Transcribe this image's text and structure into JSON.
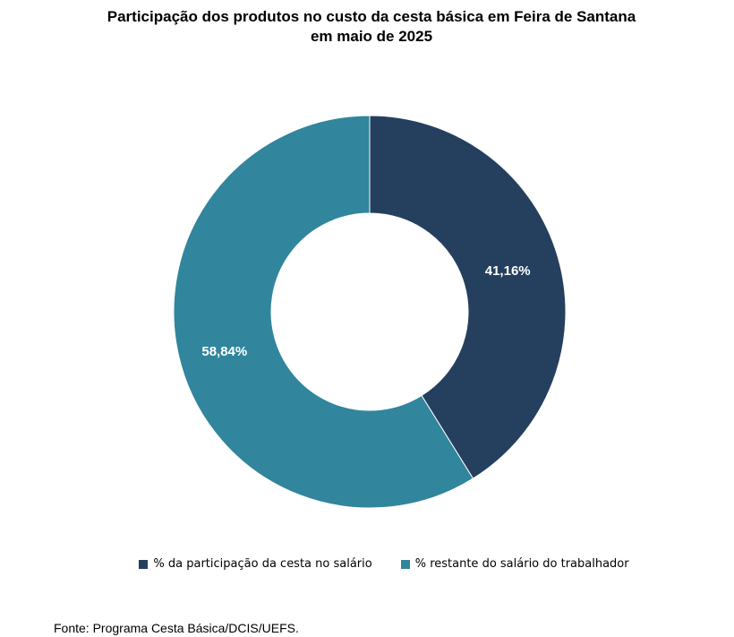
{
  "chart_data": {
    "type": "pie",
    "variant": "donut",
    "title_line1": "Participação dos produtos no custo da cesta básica em Feira de Santana",
    "title_line2": "em maio de 2025",
    "slices": [
      {
        "name": "% da participação da cesta no salário",
        "value": 41.16,
        "label": "41,16%",
        "color": "#253f5e"
      },
      {
        "name": "% restante do salário do trabalhador",
        "value": 58.84,
        "label": "58,84%",
        "color": "#31859c"
      }
    ],
    "legend_position": "bottom",
    "source": "Fonte: Programa Cesta Básica/DCIS/UEFS."
  }
}
